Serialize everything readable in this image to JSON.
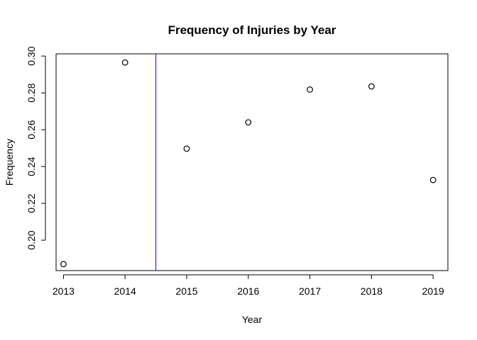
{
  "chart_data": {
    "type": "scatter",
    "title": "Frequency of Injuries by Year",
    "xlabel": "Year",
    "ylabel": "Frequency",
    "x": [
      2013,
      2014,
      2015,
      2016,
      2017,
      2018,
      2019
    ],
    "y": [
      0.187,
      0.2965,
      0.2497,
      0.264,
      0.2818,
      0.2835,
      0.2327
    ],
    "xlim": [
      2012.88,
      2019.24
    ],
    "ylim": [
      0.1835,
      0.3012
    ],
    "xticks": [
      "2013",
      "2014",
      "2015",
      "2016",
      "2017",
      "2018",
      "2019"
    ],
    "yticks": [
      "0.20",
      "0.22",
      "0.24",
      "0.26",
      "0.28",
      "0.30"
    ],
    "vline": {
      "x": 2014.5,
      "color": "#0000ff"
    },
    "grid": false,
    "point_style": "open-circle",
    "point_color": "#000000"
  }
}
